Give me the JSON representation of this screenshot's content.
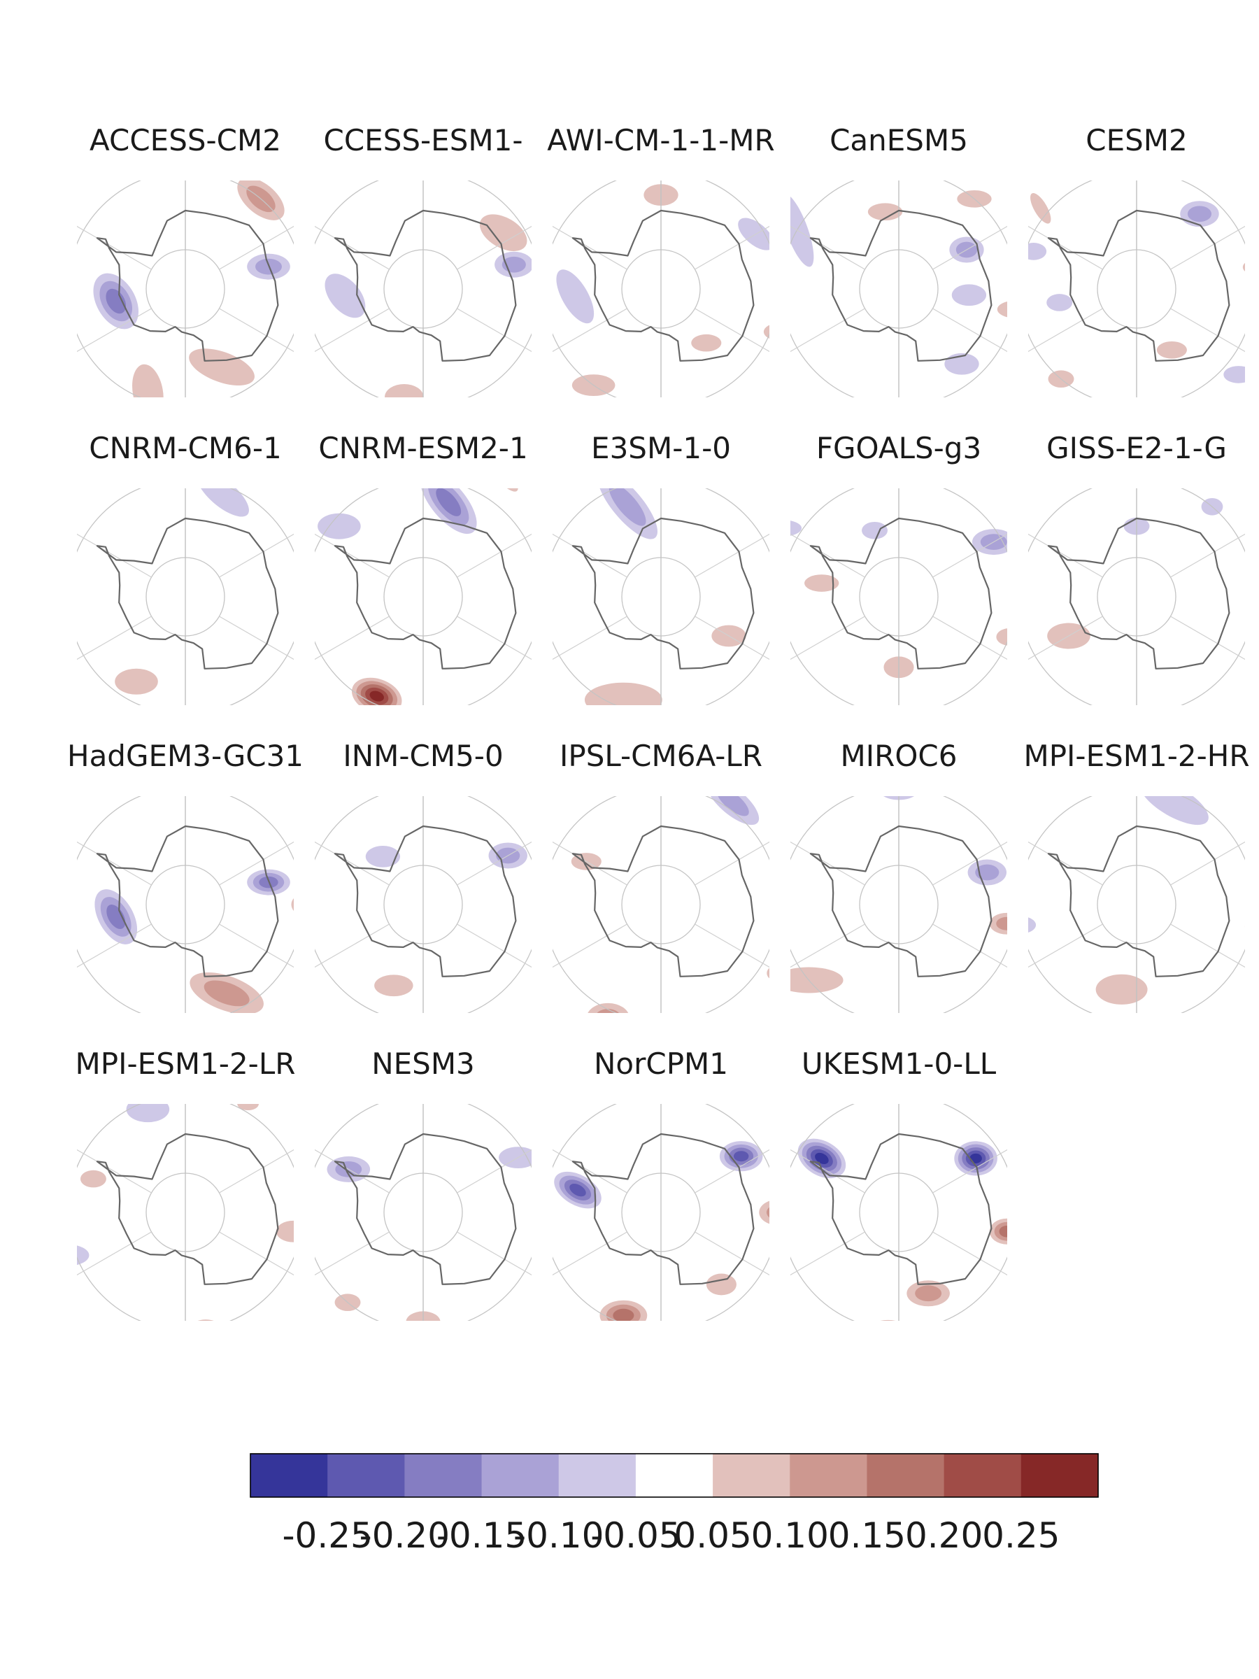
{
  "chart_data": {
    "type": "heatmap",
    "description_free": true,
    "projection": "south-polar-stereographic",
    "panels": [
      {
        "title": "ACCESS-CM2",
        "blobs": [
          {
            "lon": -100,
            "lat": -72,
            "v": -0.17,
            "a": 14,
            "b": 9,
            "rot": 60
          },
          {
            "lon": -160,
            "lat": -62,
            "v": 0.09,
            "a": 13,
            "b": 7,
            "rot": 80
          },
          {
            "lon": 155,
            "lat": -68,
            "v": 0.08,
            "a": 16,
            "b": 7,
            "rot": 20
          },
          {
            "lon": 40,
            "lat": -60,
            "v": 0.12,
            "a": 13,
            "b": 7,
            "rot": 40
          },
          {
            "lon": 75,
            "lat": -68,
            "v": -0.12,
            "a": 10,
            "b": 6,
            "rot": 0
          },
          {
            "lon": 160,
            "lat": -57,
            "v": -0.06,
            "a": 4,
            "b": 3,
            "rot": 0
          },
          {
            "lon": 100,
            "lat": -56,
            "v": 0.07,
            "a": 8,
            "b": 4,
            "rot": 0
          }
        ]
      },
      {
        "title": "CCESS-ESM1-",
        "blobs": [
          {
            "lon": -95,
            "lat": -70,
            "v": -0.09,
            "a": 12,
            "b": 7,
            "rot": 50
          },
          {
            "lon": -170,
            "lat": -62,
            "v": 0.08,
            "a": 9,
            "b": 6,
            "rot": 0
          },
          {
            "lon": 55,
            "lat": -65,
            "v": 0.09,
            "a": 12,
            "b": 7,
            "rot": 30
          },
          {
            "lon": 75,
            "lat": -66,
            "v": -0.12,
            "a": 9,
            "b": 6,
            "rot": 0
          }
        ]
      },
      {
        "title": "AWI-CM-1-1-MR",
        "blobs": [
          {
            "lon": -95,
            "lat": -68,
            "v": -0.08,
            "a": 14,
            "b": 6,
            "rot": 60
          },
          {
            "lon": -145,
            "lat": -60,
            "v": 0.07,
            "a": 10,
            "b": 5,
            "rot": 0
          },
          {
            "lon": 140,
            "lat": -72,
            "v": 0.06,
            "a": 7,
            "b": 4,
            "rot": 0
          },
          {
            "lon": 60,
            "lat": -62,
            "v": -0.08,
            "a": 10,
            "b": 5,
            "rot": 40
          },
          {
            "lon": 0,
            "lat": -66,
            "v": 0.07,
            "a": 8,
            "b": 5,
            "rot": 0
          },
          {
            "lon": 110,
            "lat": -58,
            "v": 0.06,
            "a": 7,
            "b": 4,
            "rot": 0
          }
        ]
      },
      {
        "title": "CanESM5",
        "blobs": [
          {
            "lon": -60,
            "lat": -60,
            "v": -0.09,
            "a": 18,
            "b": 5,
            "rot": 70
          },
          {
            "lon": 95,
            "lat": -72,
            "v": -0.09,
            "a": 8,
            "b": 5,
            "rot": 0
          },
          {
            "lon": 60,
            "lat": -70,
            "v": -0.1,
            "a": 8,
            "b": 6,
            "rot": 0
          },
          {
            "lon": 140,
            "lat": -65,
            "v": -0.06,
            "a": 8,
            "b": 5,
            "rot": 0
          },
          {
            "lon": 170,
            "lat": -55,
            "v": 0.07,
            "a": 9,
            "b": 4,
            "rot": 0
          },
          {
            "lon": 100,
            "lat": -60,
            "v": 0.07,
            "a": 8,
            "b": 4,
            "rot": 0
          },
          {
            "lon": -10,
            "lat": -70,
            "v": 0.07,
            "a": 8,
            "b": 4,
            "rot": 0
          },
          {
            "lon": 40,
            "lat": -60,
            "v": 0.07,
            "a": 8,
            "b": 4,
            "rot": 0
          }
        ]
      },
      {
        "title": "CESM2",
        "blobs": [
          {
            "lon": 40,
            "lat": -65,
            "v": -0.12,
            "a": 9,
            "b": 6,
            "rot": 0
          },
          {
            "lon": 150,
            "lat": -72,
            "v": 0.07,
            "a": 7,
            "b": 4,
            "rot": 0
          },
          {
            "lon": 80,
            "lat": -58,
            "v": 0.07,
            "a": 8,
            "b": 4,
            "rot": 0
          },
          {
            "lon": -100,
            "lat": -70,
            "v": -0.06,
            "a": 6,
            "b": 4,
            "rot": 0
          },
          {
            "lon": -140,
            "lat": -60,
            "v": 0.06,
            "a": 6,
            "b": 4,
            "rot": 0
          },
          {
            "lon": 130,
            "lat": -56,
            "v": -0.07,
            "a": 7,
            "b": 4,
            "rot": 0
          },
          {
            "lon": -50,
            "lat": -58,
            "v": 0.06,
            "a": 8,
            "b": 3,
            "rot": 60
          },
          {
            "lon": -70,
            "lat": -62,
            "v": -0.06,
            "a": 6,
            "b": 4,
            "rot": 0
          }
        ]
      },
      {
        "title": "CNRM-CM6-1",
        "blobs": [
          {
            "lon": -150,
            "lat": -65,
            "v": 0.08,
            "a": 10,
            "b": 6,
            "rot": 0
          },
          {
            "lon": 20,
            "lat": -62,
            "v": -0.08,
            "a": 15,
            "b": 6,
            "rot": 40
          }
        ]
      },
      {
        "title": "CNRM-ESM2-1",
        "blobs": [
          {
            "lon": -155,
            "lat": -62,
            "v": 0.27,
            "a": 12,
            "b": 8,
            "rot": 20
          },
          {
            "lon": 15,
            "lat": -65,
            "v": -0.16,
            "a": 18,
            "b": 8,
            "rot": 50
          },
          {
            "lon": -50,
            "lat": -62,
            "v": -0.08,
            "a": 10,
            "b": 6,
            "rot": 0
          },
          {
            "lon": 30,
            "lat": -52,
            "v": 0.08,
            "a": 14,
            "b": 4,
            "rot": 50
          },
          {
            "lon": -100,
            "lat": -55,
            "v": 0.07,
            "a": 8,
            "b": 4,
            "rot": 0
          }
        ]
      },
      {
        "title": "E3SM-1-0",
        "blobs": [
          {
            "lon": -160,
            "lat": -62,
            "v": 0.09,
            "a": 18,
            "b": 8,
            "rot": 0
          },
          {
            "lon": -20,
            "lat": -65,
            "v": -0.11,
            "a": 20,
            "b": 7,
            "rot": 50
          },
          {
            "lon": 120,
            "lat": -70,
            "v": 0.07,
            "a": 8,
            "b": 5,
            "rot": 0
          },
          {
            "lon": 0,
            "lat": -50,
            "v": 0.07,
            "a": 12,
            "b": 4,
            "rot": 0
          }
        ]
      },
      {
        "title": "FGOALS-g3",
        "blobs": [
          {
            "lon": 180,
            "lat": -72,
            "v": 0.07,
            "a": 7,
            "b": 5,
            "rot": 0
          },
          {
            "lon": -80,
            "lat": -70,
            "v": 0.07,
            "a": 8,
            "b": 4,
            "rot": 0
          },
          {
            "lon": -60,
            "lat": -55,
            "v": -0.06,
            "a": 10,
            "b": 4,
            "rot": 0
          },
          {
            "lon": 60,
            "lat": -62,
            "v": -0.12,
            "a": 10,
            "b": 6,
            "rot": 0
          },
          {
            "lon": -20,
            "lat": -72,
            "v": -0.07,
            "a": 6,
            "b": 4,
            "rot": 0
          },
          {
            "lon": 110,
            "lat": -60,
            "v": 0.06,
            "a": 6,
            "b": 4,
            "rot": 0
          }
        ]
      },
      {
        "title": "GISS-E2-1-G",
        "blobs": [
          {
            "lon": -120,
            "lat": -70,
            "v": 0.09,
            "a": 10,
            "b": 6,
            "rot": 0
          },
          {
            "lon": 0,
            "lat": -72,
            "v": -0.06,
            "a": 6,
            "b": 4,
            "rot": 0
          },
          {
            "lon": 40,
            "lat": -60,
            "v": -0.06,
            "a": 5,
            "b": 4,
            "rot": 0
          },
          {
            "lon": -80,
            "lat": -52,
            "v": -0.06,
            "a": 5,
            "b": 3,
            "rot": 0
          }
        ]
      },
      {
        "title": "HadGEM3-GC31",
        "blobs": [
          {
            "lon": -100,
            "lat": -72,
            "v": -0.15,
            "a": 14,
            "b": 8,
            "rot": 60
          },
          {
            "lon": 155,
            "lat": -65,
            "v": 0.1,
            "a": 18,
            "b": 8,
            "rot": 20
          },
          {
            "lon": 75,
            "lat": -68,
            "v": -0.15,
            "a": 10,
            "b": 6,
            "rot": 0
          },
          {
            "lon": 90,
            "lat": -58,
            "v": 0.12,
            "a": 9,
            "b": 6,
            "rot": 0
          },
          {
            "lon": 0,
            "lat": -55,
            "v": 0.07,
            "a": 9,
            "b": 4,
            "rot": 0
          }
        ]
      },
      {
        "title": "INM-CM5-0",
        "blobs": [
          {
            "lon": -160,
            "lat": -68,
            "v": 0.07,
            "a": 9,
            "b": 5,
            "rot": 0
          },
          {
            "lon": -40,
            "lat": -74,
            "v": -0.06,
            "a": 8,
            "b": 5,
            "rot": 0
          },
          {
            "lon": 60,
            "lat": -65,
            "v": -0.12,
            "a": 9,
            "b": 6,
            "rot": 0
          },
          {
            "lon": 0,
            "lat": -58,
            "v": 0.07,
            "a": 7,
            "b": 4,
            "rot": 0
          },
          {
            "lon": 90,
            "lat": -55,
            "v": 0.07,
            "a": 6,
            "b": 4,
            "rot": 0
          }
        ]
      },
      {
        "title": "IPSL-CM6A-LR",
        "blobs": [
          {
            "lon": -155,
            "lat": -58,
            "v": 0.12,
            "a": 10,
            "b": 7,
            "rot": 0
          },
          {
            "lon": 35,
            "lat": -58,
            "v": -0.12,
            "a": 15,
            "b": 6,
            "rot": 40
          },
          {
            "lon": -60,
            "lat": -68,
            "v": 0.07,
            "a": 7,
            "b": 4,
            "rot": 0
          },
          {
            "lon": 120,
            "lat": -55,
            "v": 0.07,
            "a": 6,
            "b": 4,
            "rot": 0
          }
        ]
      },
      {
        "title": "MIROC6",
        "blobs": [
          {
            "lon": -130,
            "lat": -60,
            "v": 0.08,
            "a": 16,
            "b": 6,
            "rot": 0
          },
          {
            "lon": 0,
            "lat": -60,
            "v": -0.1,
            "a": 10,
            "b": 6,
            "rot": 0
          },
          {
            "lon": 70,
            "lat": -66,
            "v": -0.1,
            "a": 9,
            "b": 6,
            "rot": 0
          },
          {
            "lon": 100,
            "lat": -62,
            "v": 0.1,
            "a": 8,
            "b": 5,
            "rot": 0
          },
          {
            "lon": -20,
            "lat": -52,
            "v": -0.09,
            "a": 9,
            "b": 5,
            "rot": 0
          }
        ]
      },
      {
        "title": "MPI-ESM1-2-HR",
        "blobs": [
          {
            "lon": -170,
            "lat": -68,
            "v": 0.08,
            "a": 12,
            "b": 7,
            "rot": 0
          },
          {
            "lon": 20,
            "lat": -62,
            "v": -0.06,
            "a": 18,
            "b": 7,
            "rot": 30
          },
          {
            "lon": -100,
            "lat": -60,
            "v": -0.06,
            "a": 7,
            "b": 4,
            "rot": 0
          },
          {
            "lon": 100,
            "lat": -58,
            "v": 0.06,
            "a": 7,
            "b": 4,
            "rot": 0
          }
        ]
      },
      {
        "title": "MPI-ESM1-2-LR",
        "blobs": [
          {
            "lon": -110,
            "lat": -58,
            "v": -0.07,
            "a": 10,
            "b": 5,
            "rot": 0
          },
          {
            "lon": -20,
            "lat": -62,
            "v": -0.08,
            "a": 10,
            "b": 6,
            "rot": 0
          },
          {
            "lon": 100,
            "lat": -62,
            "v": 0.07,
            "a": 8,
            "b": 5,
            "rot": 0
          },
          {
            "lon": 170,
            "lat": -60,
            "v": 0.06,
            "a": 7,
            "b": 4,
            "rot": 0
          },
          {
            "lon": -70,
            "lat": -65,
            "v": 0.06,
            "a": 6,
            "b": 4,
            "rot": 0
          },
          {
            "lon": 30,
            "lat": -58,
            "v": 0.06,
            "a": 5,
            "b": 3,
            "rot": 0
          }
        ]
      },
      {
        "title": "NESM3",
        "blobs": [
          {
            "lon": -180,
            "lat": -62,
            "v": 0.07,
            "a": 8,
            "b": 5,
            "rot": 0
          },
          {
            "lon": -60,
            "lat": -68,
            "v": -0.1,
            "a": 10,
            "b": 6,
            "rot": 0
          },
          {
            "lon": 60,
            "lat": -62,
            "v": -0.07,
            "a": 9,
            "b": 5,
            "rot": 0
          },
          {
            "lon": 10,
            "lat": -58,
            "v": 0.07,
            "a": 7,
            "b": 4,
            "rot": 0
          },
          {
            "lon": 100,
            "lat": -58,
            "v": 0.06,
            "a": 6,
            "b": 4,
            "rot": 0
          },
          {
            "lon": -140,
            "lat": -60,
            "v": 0.06,
            "a": 6,
            "b": 4,
            "rot": 0
          }
        ]
      },
      {
        "title": "NorCPM1",
        "blobs": [
          {
            "lon": -160,
            "lat": -62,
            "v": 0.15,
            "a": 11,
            "b": 7,
            "rot": 0
          },
          {
            "lon": -75,
            "lat": -68,
            "v": -0.2,
            "a": 12,
            "b": 7,
            "rot": 30
          },
          {
            "lon": 55,
            "lat": -65,
            "v": -0.2,
            "a": 10,
            "b": 7,
            "rot": 0
          },
          {
            "lon": 90,
            "lat": -60,
            "v": 0.1,
            "a": 9,
            "b": 6,
            "rot": 0
          },
          {
            "lon": -10,
            "lat": -58,
            "v": 0.1,
            "a": 10,
            "b": 6,
            "rot": 0
          },
          {
            "lon": 140,
            "lat": -66,
            "v": 0.07,
            "a": 7,
            "b": 5,
            "rot": 0
          }
        ]
      },
      {
        "title": "UKESM1-0-LL",
        "blobs": [
          {
            "lon": -175,
            "lat": -58,
            "v": 0.15,
            "a": 12,
            "b": 8,
            "rot": 0
          },
          {
            "lon": -55,
            "lat": -66,
            "v": -0.25,
            "a": 12,
            "b": 8,
            "rot": 30
          },
          {
            "lon": 55,
            "lat": -66,
            "v": -0.25,
            "a": 10,
            "b": 8,
            "rot": 0
          },
          {
            "lon": 100,
            "lat": -62,
            "v": 0.17,
            "a": 8,
            "b": 6,
            "rot": 0
          },
          {
            "lon": 160,
            "lat": -68,
            "v": 0.1,
            "a": 10,
            "b": 6,
            "rot": 0
          },
          {
            "lon": 0,
            "lat": -52,
            "v": 0.08,
            "a": 10,
            "b": 4,
            "rot": 0
          }
        ]
      }
    ],
    "colorbar": {
      "levels": [
        -0.3,
        -0.25,
        -0.2,
        -0.15,
        -0.1,
        -0.05,
        0.05,
        0.1,
        0.15,
        0.2,
        0.25,
        0.3
      ],
      "colors": [
        "#35359a",
        "#5e59b0",
        "#857dc2",
        "#aaa2d6",
        "#cec8e7",
        "#ffffff",
        "#e2c1bc",
        "#cd9890",
        "#b5736a",
        "#a04c47",
        "#862827"
      ],
      "tick_labels": [
        "-0.25",
        "-0.20",
        "-0.15",
        "-0.10",
        "-0.05",
        "0.05",
        "0.10",
        "0.15",
        "0.20",
        "0.25"
      ]
    }
  }
}
